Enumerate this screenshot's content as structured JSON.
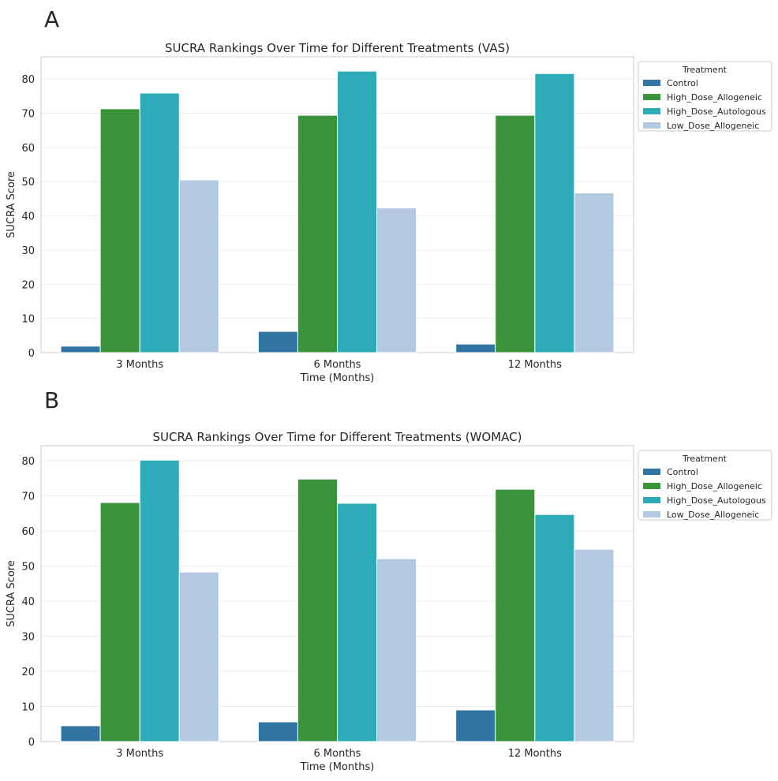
{
  "chart_data": [
    {
      "panel_label": "A",
      "type": "bar",
      "title": "SUCRA Rankings Over Time for Different Treatments (VAS)",
      "xlabel": "Time (Months)",
      "ylabel": "SUCRA Score",
      "ylim": [
        0,
        86.5
      ],
      "yticks": [
        0,
        10,
        20,
        30,
        40,
        50,
        60,
        70,
        80
      ],
      "grid": true,
      "legend_title": "Treatment",
      "legend_position": "outside-top-right",
      "categories": [
        "3 Months",
        "6 Months",
        "12 Months"
      ],
      "series": [
        {
          "name": "Control",
          "color": "#3274a1",
          "values": [
            1.9,
            6.2,
            2.5
          ]
        },
        {
          "name": "High_Dose_Allogeneic",
          "color": "#3a923a",
          "values": [
            71.3,
            69.4,
            69.4
          ]
        },
        {
          "name": "High_Dose_Autologous",
          "color": "#2eabb8",
          "values": [
            75.9,
            82.3,
            81.6
          ]
        },
        {
          "name": "Low_Dose_Allogeneic",
          "color": "#b5c8e2",
          "values": [
            50.5,
            42.3,
            46.7
          ]
        }
      ]
    },
    {
      "panel_label": "B",
      "type": "bar",
      "title": "SUCRA Rankings Over Time for Different Treatments (WOMAC)",
      "xlabel": "Time (Months)",
      "ylabel": "SUCRA Score",
      "ylim": [
        0,
        84.3
      ],
      "yticks": [
        0,
        10,
        20,
        30,
        40,
        50,
        60,
        70,
        80
      ],
      "grid": true,
      "legend_title": "Treatment",
      "legend_position": "outside-top-right",
      "categories": [
        "3 Months",
        "6 Months",
        "12 Months"
      ],
      "series": [
        {
          "name": "Control",
          "color": "#3274a1",
          "values": [
            4.5,
            5.6,
            9.0
          ]
        },
        {
          "name": "High_Dose_Allogeneic",
          "color": "#3a923a",
          "values": [
            68.1,
            74.8,
            71.9
          ]
        },
        {
          "name": "High_Dose_Autologous",
          "color": "#2eabb8",
          "values": [
            80.2,
            67.9,
            64.7
          ]
        },
        {
          "name": "Low_Dose_Allogeneic",
          "color": "#b5c8e2",
          "values": [
            48.3,
            52.1,
            54.8
          ]
        }
      ]
    }
  ]
}
